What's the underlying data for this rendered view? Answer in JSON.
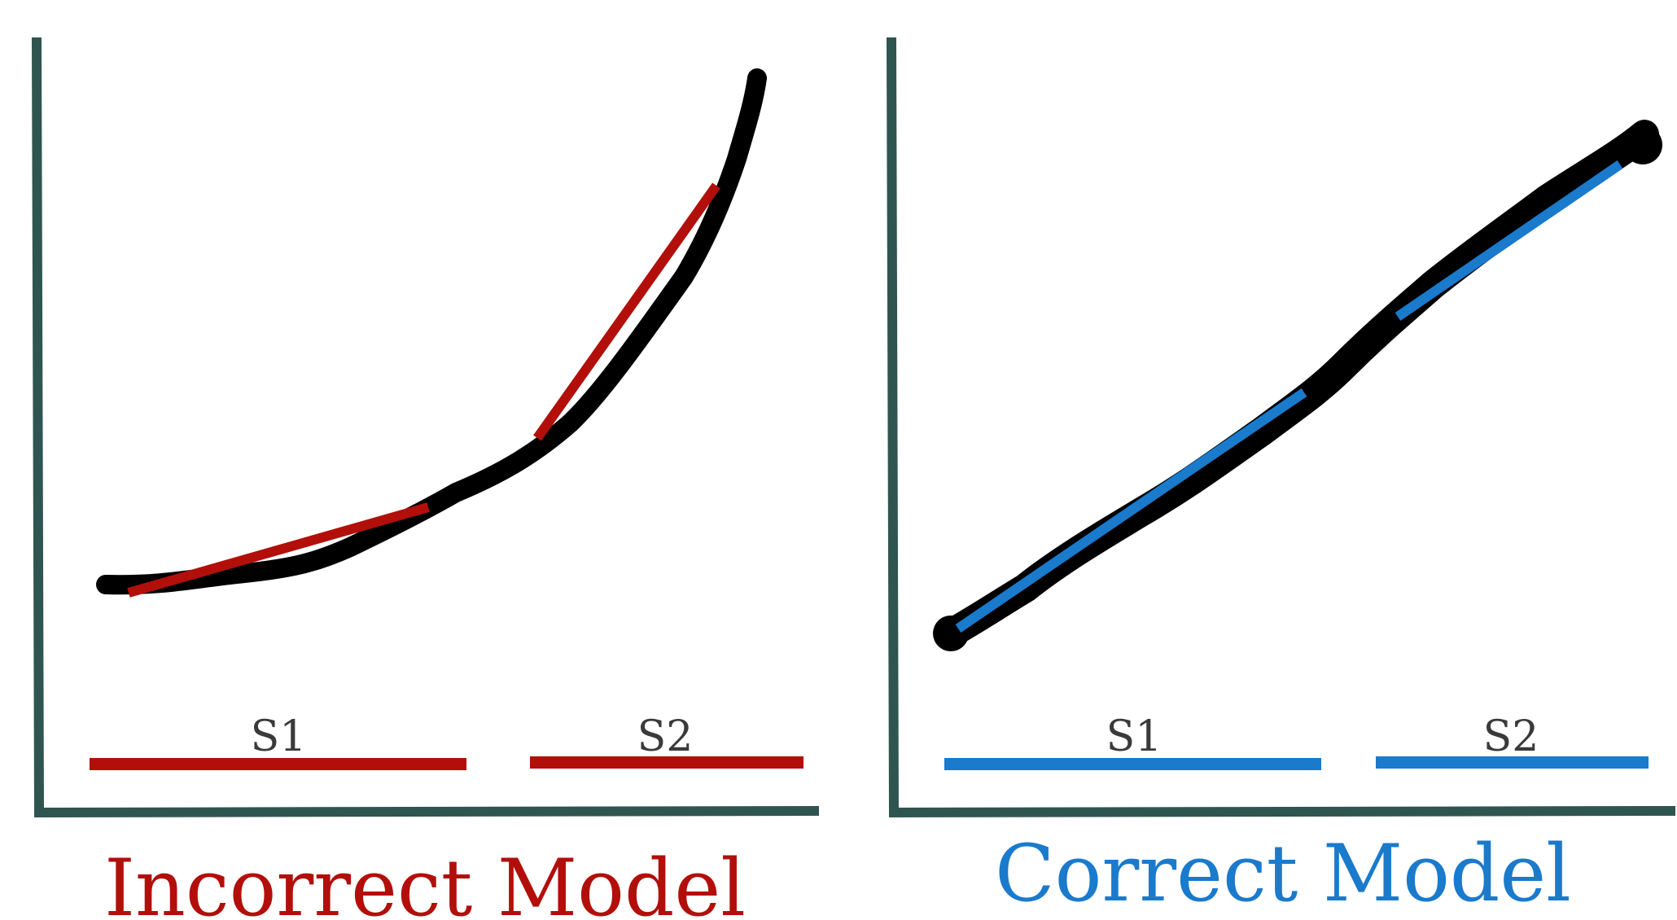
{
  "colors": {
    "axis": "#2f5550",
    "curve": "#000000",
    "incorrect": "#b20f0b",
    "correct": "#1a7acc",
    "label": "#3a3a3a"
  },
  "panels": [
    {
      "id": "incorrect",
      "title": "Incorrect Model",
      "accent": "incorrect",
      "curve_shape": "convex-exponential",
      "segments": [
        {
          "label": "S1"
        },
        {
          "label": "S2"
        }
      ]
    },
    {
      "id": "correct",
      "title": "Correct Model",
      "accent": "correct",
      "curve_shape": "linear",
      "segments": [
        {
          "label": "S1"
        },
        {
          "label": "S2"
        }
      ]
    }
  ]
}
